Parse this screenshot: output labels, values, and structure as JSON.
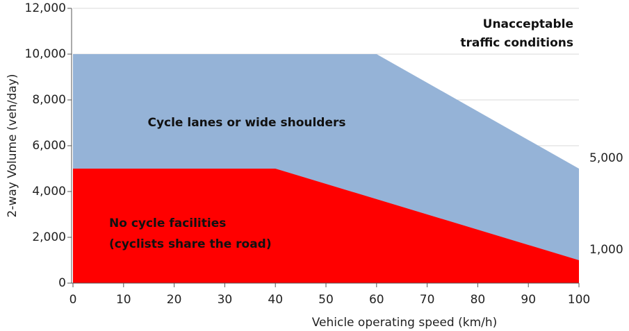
{
  "chart_data": {
    "type": "area",
    "xlabel": "Vehicle operating speed (km/h)",
    "ylabel": "2-way Volume (veh/day)",
    "xlim": [
      0,
      100
    ],
    "xticks": [
      0,
      10,
      20,
      30,
      40,
      50,
      60,
      70,
      80,
      90,
      100
    ],
    "ylim": [
      0,
      12000
    ],
    "yticks": [
      0,
      {
        "value": 2000,
        "label": "2,000"
      },
      {
        "value": 4000,
        "label": "4,000"
      },
      {
        "value": 6000,
        "label": "6,000"
      },
      {
        "value": 8000,
        "label": "8,000"
      },
      {
        "value": 10000,
        "label": "10,000"
      },
      {
        "value": 12000,
        "label": "12,000"
      }
    ],
    "grid": true,
    "series": [
      {
        "name": [
          "Cycle lanes or wide shoulders"
        ],
        "color": "#95b3d7",
        "x": [
          0,
          60,
          100
        ],
        "values": [
          10000,
          10000,
          5000
        ]
      },
      {
        "name": [
          "No cycle facilities",
          "(cyclists share the road)"
        ],
        "color": "#ff0000",
        "x": [
          0,
          40,
          100
        ],
        "values": [
          5000,
          5000,
          1000
        ]
      }
    ],
    "annotation": [
      "Unacceptable",
      "traffic conditions"
    ],
    "right_labels": [
      {
        "value": 5000,
        "label": "5,000"
      },
      {
        "value": 1000,
        "label": "1,000"
      }
    ]
  }
}
